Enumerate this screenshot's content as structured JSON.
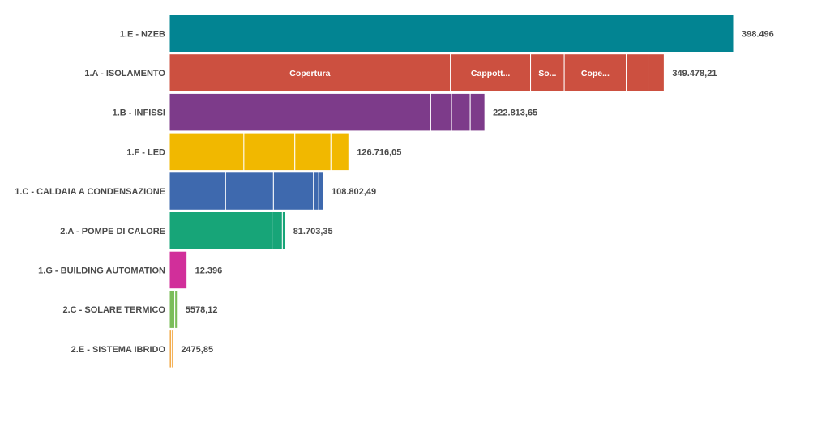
{
  "chart_data": {
    "type": "bar",
    "orientation": "horizontal",
    "stacked": true,
    "title": "",
    "xlabel": "",
    "ylabel": "",
    "xlim": [
      0,
      398496
    ],
    "grid": false,
    "legend": "none",
    "categories": [
      {
        "label": "1.E - NZEB",
        "total_label": "398.496",
        "color": "#028492",
        "segments": [
          {
            "value": 398496,
            "label": ""
          }
        ]
      },
      {
        "label": "1.A - ISOLAMENTO",
        "total_label": "349.478,21",
        "color": "#CC5040",
        "segments": [
          {
            "value": 198500,
            "label": "Copertura"
          },
          {
            "value": 56600,
            "label": "Cappott..."
          },
          {
            "value": 23800,
            "label": "So..."
          },
          {
            "value": 43800,
            "label": "Cope..."
          },
          {
            "value": 15400,
            "label": ""
          },
          {
            "value": 11378.21,
            "label": ""
          }
        ]
      },
      {
        "label": "1.B - INFISSI",
        "total_label": "222.813,65",
        "color": "#7D3B8A",
        "segments": [
          {
            "value": 184600,
            "label": ""
          },
          {
            "value": 14700,
            "label": ""
          },
          {
            "value": 13200,
            "label": ""
          },
          {
            "value": 10313.65,
            "label": ""
          }
        ]
      },
      {
        "label": "1.F - LED",
        "total_label": "126.716,05",
        "color": "#F1B800",
        "segments": [
          {
            "value": 52600,
            "label": ""
          },
          {
            "value": 36000,
            "label": ""
          },
          {
            "value": 25500,
            "label": ""
          },
          {
            "value": 12616.05,
            "label": ""
          }
        ]
      },
      {
        "label": "1.C - CALDAIA A CONDENSAZIONE",
        "total_label": "108.802,49",
        "color": "#3E69AE",
        "segments": [
          {
            "value": 39700,
            "label": ""
          },
          {
            "value": 33800,
            "label": ""
          },
          {
            "value": 28300,
            "label": ""
          },
          {
            "value": 3700,
            "label": ""
          },
          {
            "value": 3302.49,
            "label": ""
          }
        ]
      },
      {
        "label": "2.A - POMPE DI CALORE",
        "total_label": "81.703,35",
        "color": "#17A578",
        "segments": [
          {
            "value": 72500,
            "label": ""
          },
          {
            "value": 7300,
            "label": ""
          },
          {
            "value": 1903.35,
            "label": ""
          }
        ]
      },
      {
        "label": "1.G - BUILDING AUTOMATION",
        "total_label": "12.396",
        "color": "#D12F9A",
        "segments": [
          {
            "value": 12396,
            "label": ""
          }
        ]
      },
      {
        "label": "2.C - SOLARE TERMICO",
        "total_label": "5578,12",
        "color": "#7BBD5A",
        "segments": [
          {
            "value": 3800,
            "label": ""
          },
          {
            "value": 1778.12,
            "label": ""
          }
        ]
      },
      {
        "label": "2.E - SISTEMA IBRIDO",
        "total_label": "2475,85",
        "color": "#F2A33A",
        "segments": [
          {
            "value": 1400,
            "label": ""
          },
          {
            "value": 1075.85,
            "label": ""
          }
        ]
      }
    ]
  }
}
